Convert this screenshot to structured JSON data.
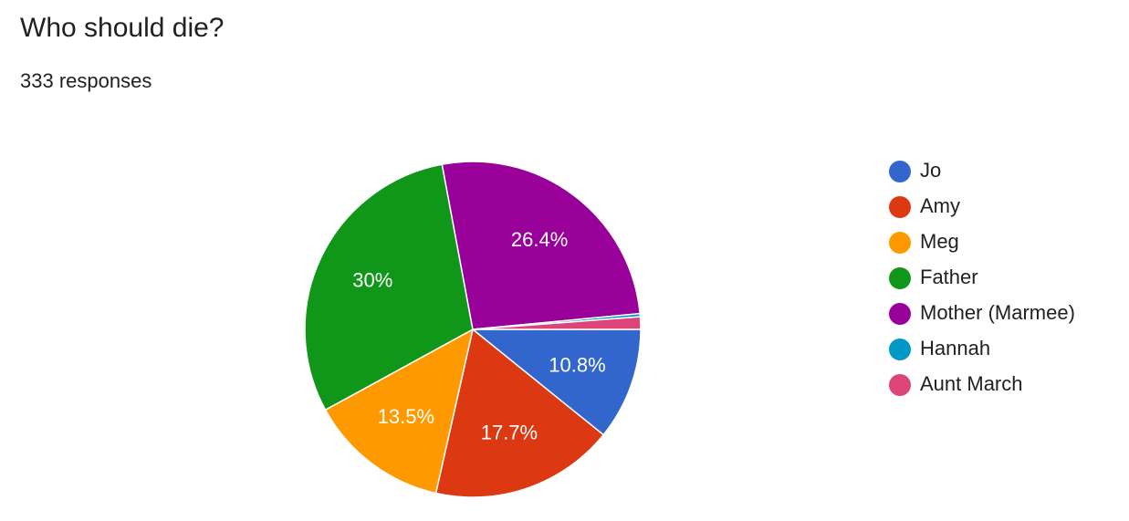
{
  "chart_data": {
    "type": "pie",
    "title": "Who should die?",
    "subtitle": "333 responses",
    "categories": [
      "Jo",
      "Amy",
      "Meg",
      "Father",
      "Mother (Marmee)",
      "Hannah",
      "Aunt March"
    ],
    "values": [
      10.8,
      17.7,
      13.5,
      30,
      26.4,
      0.3,
      1.2
    ],
    "value_labels": [
      "10.8%",
      "17.7%",
      "13.5%",
      "30%",
      "26.4%",
      null,
      null
    ],
    "colors": [
      "#3366cc",
      "#dc3912",
      "#ff9900",
      "#109618",
      "#990099",
      "#0099c6",
      "#dd4477"
    ],
    "legend": "right"
  }
}
